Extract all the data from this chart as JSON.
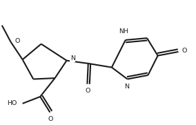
{
  "bg_color": "#ffffff",
  "line_color": "#1a1a1a",
  "line_width": 1.5,
  "font_size": 6.8,
  "figsize": [
    2.84,
    1.81
  ],
  "dpi": 100,
  "xlim": [
    0,
    10
  ],
  "ylim": [
    0,
    6.4
  ]
}
